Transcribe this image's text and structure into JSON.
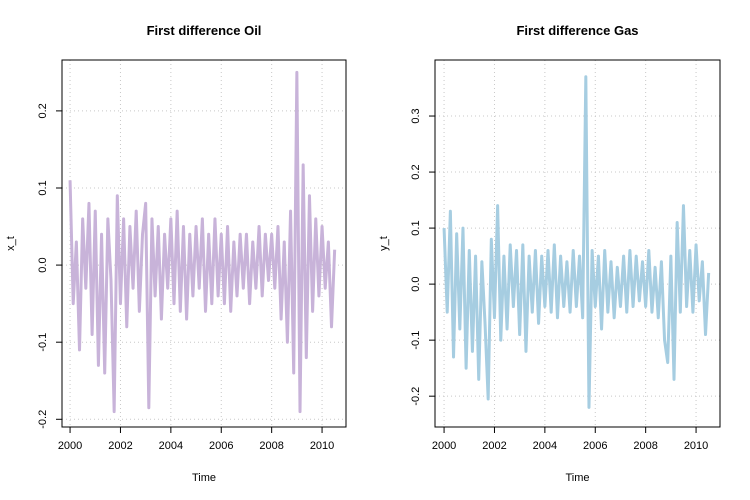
{
  "chart_data": [
    {
      "type": "line",
      "title": "First difference Oil",
      "xlabel": "Time",
      "ylabel": "x_t",
      "color": "#c8b3d9",
      "x": [
        2000,
        2000.125,
        2000.25,
        2000.375,
        2000.5,
        2000.625,
        2000.75,
        2000.875,
        2001,
        2001.125,
        2001.25,
        2001.375,
        2001.5,
        2001.625,
        2001.75,
        2001.875,
        2002,
        2002.125,
        2002.25,
        2002.375,
        2002.5,
        2002.625,
        2002.75,
        2002.875,
        2003,
        2003.125,
        2003.25,
        2003.375,
        2003.5,
        2003.625,
        2003.75,
        2003.875,
        2004,
        2004.125,
        2004.25,
        2004.375,
        2004.5,
        2004.625,
        2004.75,
        2004.875,
        2005,
        2005.125,
        2005.25,
        2005.375,
        2005.5,
        2005.625,
        2005.75,
        2005.875,
        2006,
        2006.125,
        2006.25,
        2006.375,
        2006.5,
        2006.625,
        2006.75,
        2006.875,
        2007,
        2007.125,
        2007.25,
        2007.375,
        2007.5,
        2007.625,
        2007.75,
        2007.875,
        2008,
        2008.125,
        2008.25,
        2008.375,
        2008.5,
        2008.625,
        2008.75,
        2008.875,
        2009,
        2009.125,
        2009.25,
        2009.375,
        2009.5,
        2009.625,
        2009.75,
        2009.875,
        2010,
        2010.125,
        2010.25,
        2010.375,
        2010.5
      ],
      "values": [
        0.11,
        -0.05,
        0.03,
        -0.11,
        0.06,
        -0.03,
        0.08,
        -0.09,
        0.07,
        -0.13,
        0.04,
        -0.14,
        0.06,
        -0.02,
        -0.19,
        0.09,
        -0.05,
        0.06,
        -0.08,
        0.05,
        -0.03,
        0.07,
        -0.06,
        0.04,
        0.08,
        -0.185,
        0.06,
        -0.04,
        0.05,
        -0.07,
        0.04,
        -0.03,
        0.06,
        -0.05,
        0.07,
        -0.06,
        0.05,
        -0.07,
        0.04,
        -0.04,
        0.05,
        -0.03,
        0.06,
        -0.06,
        0.04,
        -0.05,
        0.06,
        -0.04,
        0.04,
        -0.05,
        0.05,
        -0.06,
        0.03,
        -0.04,
        0.04,
        -0.03,
        0.04,
        -0.05,
        0.03,
        -0.03,
        0.05,
        -0.04,
        0.04,
        -0.02,
        0.04,
        -0.03,
        0.05,
        -0.07,
        0.03,
        -0.1,
        0.07,
        -0.14,
        0.25,
        -0.19,
        0.13,
        -0.12,
        0.09,
        -0.06,
        0.06,
        -0.04,
        0.05,
        -0.03,
        0.03,
        -0.08,
        0.02
      ],
      "xlim": [
        1999.68,
        2010.95
      ],
      "xticks": [
        2000,
        2002,
        2004,
        2006,
        2008,
        2010
      ],
      "ylim": [
        -0.21,
        0.266
      ],
      "yticks": [
        -0.2,
        -0.1,
        {
          "value": 0,
          "label": "0.0"
        },
        0.1,
        0.2
      ],
      "grid": true
    },
    {
      "type": "line",
      "title": "First difference Gas",
      "xlabel": "Time",
      "ylabel": "y_t",
      "color": "#a6cde1",
      "x": [
        2000,
        2000.125,
        2000.25,
        2000.375,
        2000.5,
        2000.625,
        2000.75,
        2000.875,
        2001,
        2001.125,
        2001.25,
        2001.375,
        2001.5,
        2001.625,
        2001.75,
        2001.875,
        2002,
        2002.125,
        2002.25,
        2002.375,
        2002.5,
        2002.625,
        2002.75,
        2002.875,
        2003,
        2003.125,
        2003.25,
        2003.375,
        2003.5,
        2003.625,
        2003.75,
        2003.875,
        2004,
        2004.125,
        2004.25,
        2004.375,
        2004.5,
        2004.625,
        2004.75,
        2004.875,
        2005,
        2005.125,
        2005.25,
        2005.375,
        2005.5,
        2005.625,
        2005.75,
        2005.875,
        2006,
        2006.125,
        2006.25,
        2006.375,
        2006.5,
        2006.625,
        2006.75,
        2006.875,
        2007,
        2007.125,
        2007.25,
        2007.375,
        2007.5,
        2007.625,
        2007.75,
        2007.875,
        2008,
        2008.125,
        2008.25,
        2008.375,
        2008.5,
        2008.625,
        2008.75,
        2008.875,
        2009,
        2009.125,
        2009.25,
        2009.375,
        2009.5,
        2009.625,
        2009.75,
        2009.875,
        2010,
        2010.125,
        2010.25,
        2010.375,
        2010.5
      ],
      "values": [
        0.1,
        -0.05,
        0.13,
        -0.13,
        0.09,
        -0.08,
        0.1,
        -0.15,
        0.06,
        -0.12,
        0.05,
        -0.17,
        0.04,
        -0.07,
        -0.205,
        0.08,
        -0.06,
        0.14,
        -0.1,
        0.05,
        -0.08,
        0.07,
        -0.04,
        0.06,
        -0.09,
        0.07,
        -0.12,
        0.05,
        -0.05,
        0.06,
        -0.07,
        0.05,
        -0.04,
        0.06,
        -0.05,
        0.07,
        -0.06,
        0.05,
        -0.04,
        0.04,
        -0.05,
        0.06,
        -0.04,
        0.05,
        -0.06,
        0.37,
        -0.22,
        0.06,
        -0.04,
        0.05,
        -0.08,
        0.06,
        -0.05,
        0.04,
        -0.06,
        0.03,
        -0.04,
        0.05,
        -0.05,
        0.06,
        -0.04,
        0.05,
        -0.03,
        0.04,
        -0.04,
        0.06,
        -0.05,
        0.03,
        -0.06,
        0.04,
        -0.1,
        -0.14,
        0.05,
        -0.17,
        0.11,
        -0.05,
        0.14,
        -0.04,
        0.06,
        -0.05,
        0.07,
        -0.03,
        0.04,
        -0.09,
        0.02
      ],
      "xlim": [
        1999.64,
        2010.95
      ],
      "xticks": [
        2000,
        2002,
        2004,
        2006,
        2008,
        2010
      ],
      "ylim": [
        -0.255,
        0.4
      ],
      "yticks": [
        -0.2,
        -0.1,
        {
          "value": 0,
          "label": "0.0"
        },
        0.1,
        0.2,
        0.3
      ],
      "grid": true
    }
  ]
}
